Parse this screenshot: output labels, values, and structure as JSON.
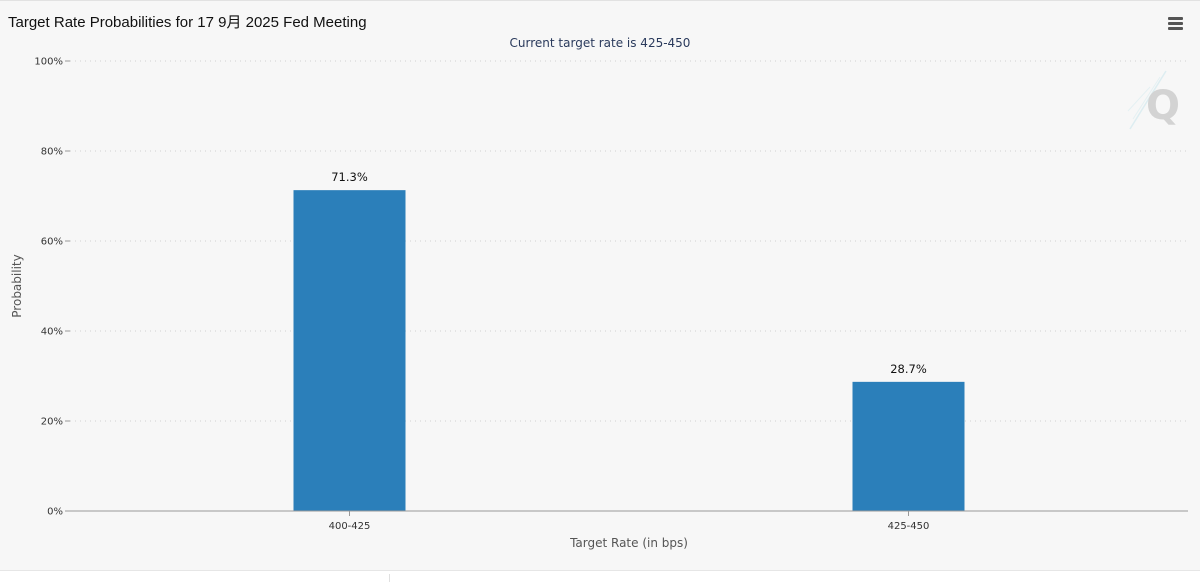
{
  "header": {
    "title": "Target Rate Probabilities for 17 9月 2025 Fed Meeting",
    "subtitle": "Current target rate is 425-450",
    "menu_icon": "hamburger-menu-icon"
  },
  "watermark": {
    "icon": "q-logo-icon",
    "text": "Q"
  },
  "colors": {
    "bar": "#2b7fba",
    "grid": "#d2d2d2",
    "background": "#f7f7f7"
  },
  "chart_data": {
    "type": "bar",
    "title": "Target Rate Probabilities for 17 9月 2025 Fed Meeting",
    "subtitle": "Current target rate is 425-450",
    "categories": [
      "400-425",
      "425-450"
    ],
    "values": [
      71.3,
      28.7
    ],
    "data_labels": [
      "71.3%",
      "28.7%"
    ],
    "xlabel": "Target Rate (in bps)",
    "ylabel": "Probability",
    "ylim": [
      0,
      100
    ],
    "yticks": [
      "0%",
      "20%",
      "40%",
      "60%",
      "80%",
      "100%"
    ],
    "grid": true,
    "legend": false
  }
}
